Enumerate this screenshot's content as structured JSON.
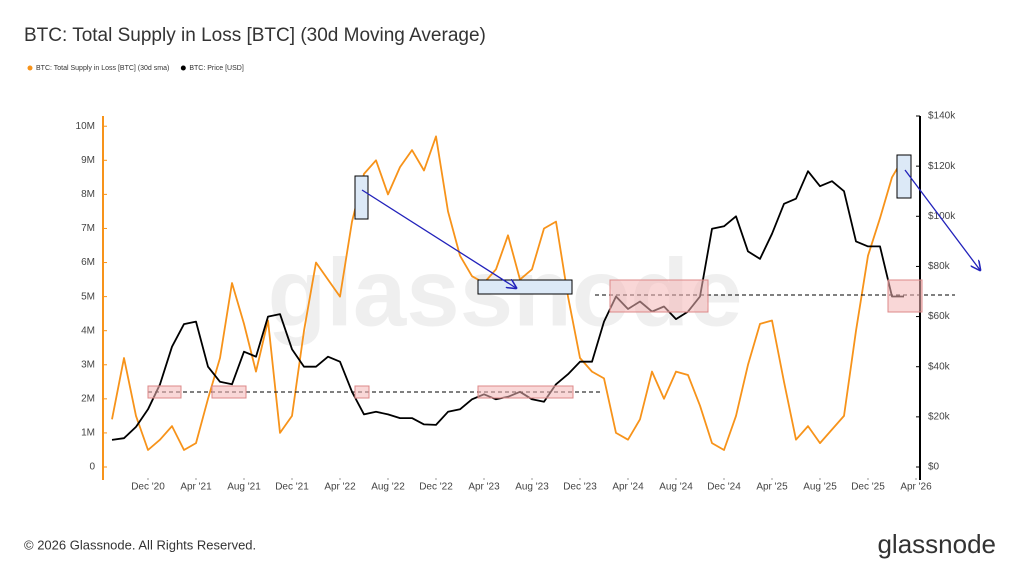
{
  "chart_data": {
    "type": "line",
    "title": "BTC: Total Supply in Loss [BTC] (30d Moving Average)",
    "watermark": "glassnode",
    "footer": "© 2026 Glassnode. All Rights Reserved.",
    "logo": "glassnode",
    "x": [
      "2020-09",
      "2020-10",
      "2020-11",
      "2020-12",
      "2021-01",
      "2021-02",
      "2021-03",
      "2021-04",
      "2021-05",
      "2021-06",
      "2021-07",
      "2021-08",
      "2021-09",
      "2021-10",
      "2021-11",
      "2021-12",
      "2022-01",
      "2022-02",
      "2022-03",
      "2022-04",
      "2022-05",
      "2022-06",
      "2022-07",
      "2022-08",
      "2022-09",
      "2022-10",
      "2022-11",
      "2022-12",
      "2023-01",
      "2023-02",
      "2023-03",
      "2023-04",
      "2023-05",
      "2023-06",
      "2023-07",
      "2023-08",
      "2023-09",
      "2023-10",
      "2023-11",
      "2023-12",
      "2024-01",
      "2024-02",
      "2024-03",
      "2024-04",
      "2024-05",
      "2024-06",
      "2024-07",
      "2024-08",
      "2024-09",
      "2024-10",
      "2024-11",
      "2024-12",
      "2025-01",
      "2025-02",
      "2025-03",
      "2025-04",
      "2025-05",
      "2025-06",
      "2025-07",
      "2025-08",
      "2025-09",
      "2025-10",
      "2025-11",
      "2025-12",
      "2026-01",
      "2026-02",
      "2026-03"
    ],
    "xlim": [
      "2020-08",
      "2026-04"
    ],
    "xticks": [
      {
        "value": "2020-12",
        "label": "Dec '20"
      },
      {
        "value": "2021-04",
        "label": "Apr '21"
      },
      {
        "value": "2021-08",
        "label": "Aug '21"
      },
      {
        "value": "2021-12",
        "label": "Dec '21"
      },
      {
        "value": "2022-04",
        "label": "Apr '22"
      },
      {
        "value": "2022-08",
        "label": "Aug '22"
      },
      {
        "value": "2022-12",
        "label": "Dec '22"
      },
      {
        "value": "2023-04",
        "label": "Apr '23"
      },
      {
        "value": "2023-08",
        "label": "Aug '23"
      },
      {
        "value": "2023-12",
        "label": "Dec '23"
      },
      {
        "value": "2024-04",
        "label": "Apr '24"
      },
      {
        "value": "2024-08",
        "label": "Aug '24"
      },
      {
        "value": "2024-12",
        "label": "Dec '24"
      },
      {
        "value": "2025-04",
        "label": "Apr '25"
      },
      {
        "value": "2025-08",
        "label": "Aug '25"
      },
      {
        "value": "2025-12",
        "label": "Dec '25"
      },
      {
        "value": "2026-04",
        "label": "Apr '26"
      }
    ],
    "ylim": [
      0,
      10300000
    ],
    "yticks": [
      0,
      {
        "value": 1000000,
        "label": "1M"
      },
      {
        "value": 2000000,
        "label": "2M"
      },
      {
        "value": 3000000,
        "label": "3M"
      },
      {
        "value": 4000000,
        "label": "4M"
      },
      {
        "value": 5000000,
        "label": "5M"
      },
      {
        "value": 6000000,
        "label": "6M"
      },
      {
        "value": 7000000,
        "label": "7M"
      },
      {
        "value": 8000000,
        "label": "8M"
      },
      {
        "value": 9000000,
        "label": "9M"
      },
      {
        "value": 10000000,
        "label": "10M"
      }
    ],
    "y2lim": [
      0,
      140000
    ],
    "y2ticks": [
      {
        "value": 0,
        "label": "$0"
      },
      {
        "value": 20000,
        "label": "$20k"
      },
      {
        "value": 40000,
        "label": "$40k"
      },
      {
        "value": 60000,
        "label": "$60k"
      },
      {
        "value": 80000,
        "label": "$80k"
      },
      {
        "value": 100000,
        "label": "$100k"
      },
      {
        "value": 120000,
        "label": "$120k"
      },
      {
        "value": 140000,
        "label": "$140k"
      }
    ],
    "series": [
      {
        "name": "BTC: Total Supply in Loss [BTC] (30d sma)",
        "color": "#f7931a",
        "values": [
          1400000,
          3200000,
          1500000,
          500000,
          800000,
          1200000,
          500000,
          700000,
          2000000,
          3200000,
          5400000,
          4200000,
          2800000,
          4300000,
          1000000,
          1500000,
          4000000,
          6000000,
          5500000,
          5000000,
          7200000,
          8600000,
          9000000,
          8000000,
          8800000,
          9300000,
          8700000,
          9700000,
          7500000,
          6200000,
          5600000,
          5400000,
          5800000,
          6800000,
          5500000,
          5800000,
          7000000,
          7200000,
          5000000,
          3200000,
          2800000,
          2600000,
          1000000,
          800000,
          1400000,
          2800000,
          2000000,
          2800000,
          2700000,
          1800000,
          700000,
          500000,
          1500000,
          3000000,
          4200000,
          4300000,
          2500000,
          800000,
          1200000,
          700000,
          1100000,
          1500000,
          4000000,
          6200000,
          7300000,
          8500000,
          9100000
        ]
      },
      {
        "name": "BTC: Price [USD]",
        "color": "#000000",
        "axis": "y2",
        "values": [
          10800,
          11500,
          16000,
          23000,
          33000,
          48000,
          57000,
          58000,
          40000,
          34000,
          33000,
          46000,
          44000,
          60000,
          61000,
          47000,
          40000,
          40000,
          44000,
          42000,
          30000,
          21000,
          22000,
          21000,
          19500,
          19500,
          17000,
          16800,
          22000,
          23000,
          27000,
          29000,
          27000,
          28000,
          30000,
          27000,
          26000,
          33000,
          37000,
          42000,
          42000,
          58000,
          68000,
          63000,
          66000,
          62000,
          64000,
          59000,
          62000,
          68000,
          95000,
          96000,
          100000,
          86000,
          83000,
          93000,
          105000,
          107000,
          118000,
          112000,
          114000,
          110000,
          90000,
          88000,
          88000,
          68000,
          68000
        ]
      }
    ]
  }
}
